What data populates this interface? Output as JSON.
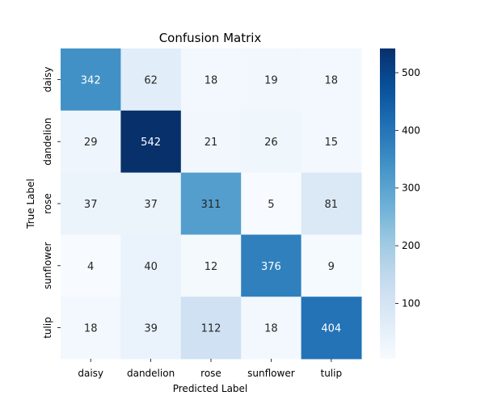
{
  "chart_data": {
    "type": "heatmap",
    "title": "Confusion Matrix",
    "xlabel": "Predicted Label",
    "ylabel": "True Label",
    "x_categories": [
      "daisy",
      "dandelion",
      "rose",
      "sunflower",
      "tulip"
    ],
    "y_categories": [
      "daisy",
      "dandelion",
      "rose",
      "sunflower",
      "tulip"
    ],
    "values": [
      [
        342,
        62,
        18,
        19,
        18
      ],
      [
        29,
        542,
        21,
        26,
        15
      ],
      [
        37,
        37,
        311,
        5,
        81
      ],
      [
        4,
        40,
        12,
        376,
        9
      ],
      [
        18,
        39,
        112,
        18,
        404
      ]
    ],
    "colormap": "Blues",
    "colorbar": {
      "range": [
        4,
        542
      ],
      "ticks": [
        100,
        200,
        300,
        400,
        500
      ]
    }
  }
}
